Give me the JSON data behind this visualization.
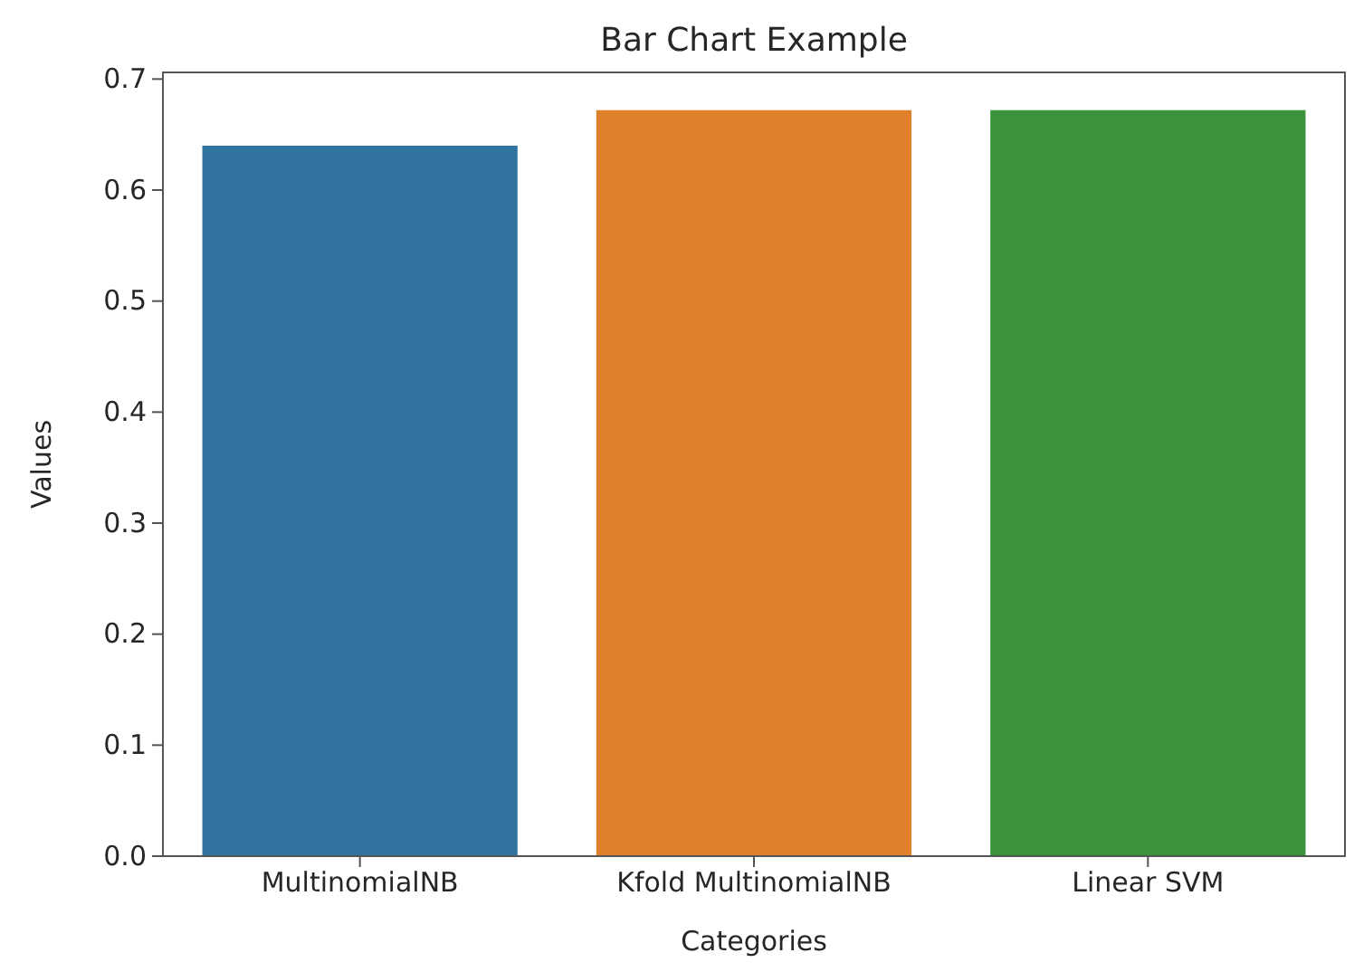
{
  "chart_data": {
    "type": "bar",
    "title": "Bar Chart Example",
    "xlabel": "Categories",
    "ylabel": "Values",
    "categories": [
      "MultinomialNB",
      "Kfold MultinomialNB",
      "Linear SVM"
    ],
    "values": [
      0.64,
      0.672,
      0.672
    ],
    "colors": [
      "#3274a1",
      "#e1812c",
      "#3a923a"
    ],
    "ylim": [
      0,
      0.706
    ],
    "yticks": [
      {
        "value": 0,
        "label": "0.0"
      },
      {
        "value": 0.1,
        "label": "0.1"
      },
      {
        "value": 0.2,
        "label": "0.2"
      },
      {
        "value": 0.3,
        "label": "0.3"
      },
      {
        "value": 0.4,
        "label": "0.4"
      },
      {
        "value": 0.5,
        "label": "0.5"
      },
      {
        "value": 0.6,
        "label": "0.6"
      },
      {
        "value": 0.7,
        "label": "0.7"
      }
    ],
    "grid": false
  }
}
